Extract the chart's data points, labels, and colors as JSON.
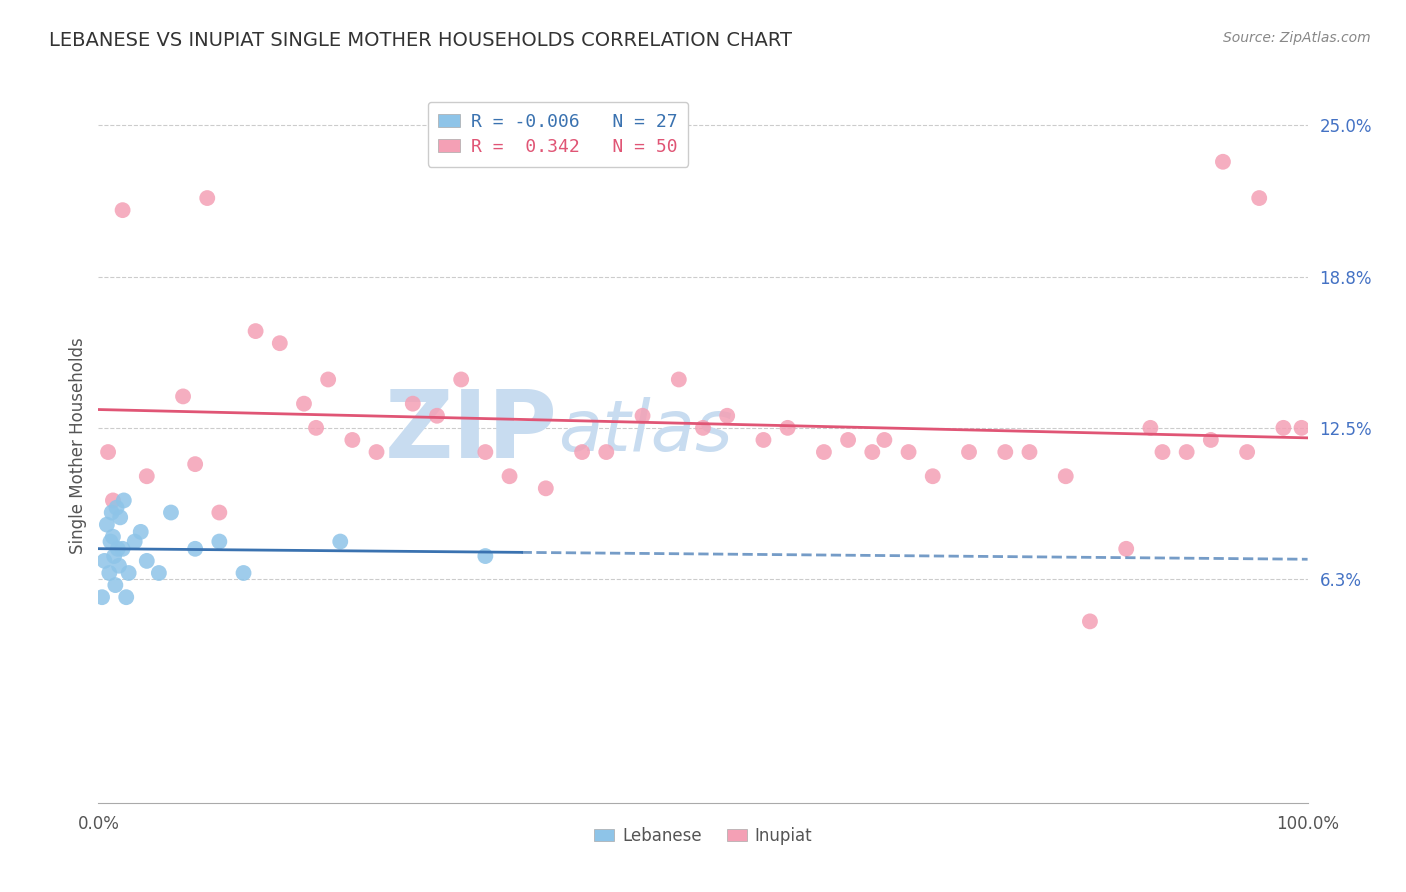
{
  "title": "LEBANESE VS INUPIAT SINGLE MOTHER HOUSEHOLDS CORRELATION CHART",
  "source_text": "Source: ZipAtlas.com",
  "ylabel": "Single Mother Households",
  "x_min": 0.0,
  "x_max": 100.0,
  "y_min": -3.0,
  "y_max": 26.5,
  "y_ticks": [
    6.25,
    12.5,
    18.75,
    25.0
  ],
  "y_tick_labels": [
    "6.3%",
    "12.5%",
    "18.8%",
    "25.0%"
  ],
  "r_lebanese": -0.006,
  "n_lebanese": 27,
  "r_inupiat": 0.342,
  "n_inupiat": 50,
  "color_lebanese": "#8EC4E8",
  "color_inupiat": "#F4A0B5",
  "line_color_lebanese": "#3A72B0",
  "line_color_inupiat": "#E05575",
  "background_color": "#FFFFFF",
  "watermark_zip": "ZIP",
  "watermark_atlas": "atlas",
  "watermark_color_zip": "#C8DCF0",
  "watermark_color_atlas": "#C8DCF0",
  "lebanese_x": [
    0.3,
    0.5,
    0.7,
    0.9,
    1.0,
    1.1,
    1.2,
    1.3,
    1.4,
    1.5,
    1.6,
    1.7,
    1.8,
    2.0,
    2.1,
    2.3,
    2.5,
    3.0,
    3.5,
    4.0,
    5.0,
    6.0,
    8.0,
    10.0,
    12.0,
    20.0,
    32.0
  ],
  "lebanese_y": [
    5.5,
    7.0,
    8.5,
    6.5,
    7.8,
    9.0,
    8.0,
    7.2,
    6.0,
    9.2,
    7.5,
    6.8,
    8.8,
    7.5,
    9.5,
    5.5,
    6.5,
    7.8,
    8.2,
    7.0,
    6.5,
    9.0,
    7.5,
    7.8,
    6.5,
    7.8,
    7.2
  ],
  "inupiat_x": [
    0.8,
    1.2,
    2.0,
    4.0,
    7.0,
    8.0,
    9.0,
    10.0,
    13.0,
    15.0,
    17.0,
    18.0,
    19.0,
    21.0,
    23.0,
    26.0,
    28.0,
    30.0,
    32.0,
    34.0,
    37.0,
    40.0,
    42.0,
    45.0,
    48.0,
    50.0,
    52.0,
    55.0,
    57.0,
    60.0,
    62.0,
    64.0,
    65.0,
    67.0,
    69.0,
    72.0,
    75.0,
    77.0,
    80.0,
    82.0,
    85.0,
    87.0,
    88.0,
    90.0,
    92.0,
    93.0,
    95.0,
    96.0,
    98.0,
    99.5
  ],
  "inupiat_y": [
    11.5,
    9.5,
    21.5,
    10.5,
    13.8,
    11.0,
    22.0,
    9.0,
    16.5,
    16.0,
    13.5,
    12.5,
    14.5,
    12.0,
    11.5,
    13.5,
    13.0,
    14.5,
    11.5,
    10.5,
    10.0,
    11.5,
    11.5,
    13.0,
    14.5,
    12.5,
    13.0,
    12.0,
    12.5,
    11.5,
    12.0,
    11.5,
    12.0,
    11.5,
    10.5,
    11.5,
    11.5,
    11.5,
    10.5,
    4.5,
    7.5,
    12.5,
    11.5,
    11.5,
    12.0,
    23.5,
    11.5,
    22.0,
    12.5,
    12.5
  ]
}
